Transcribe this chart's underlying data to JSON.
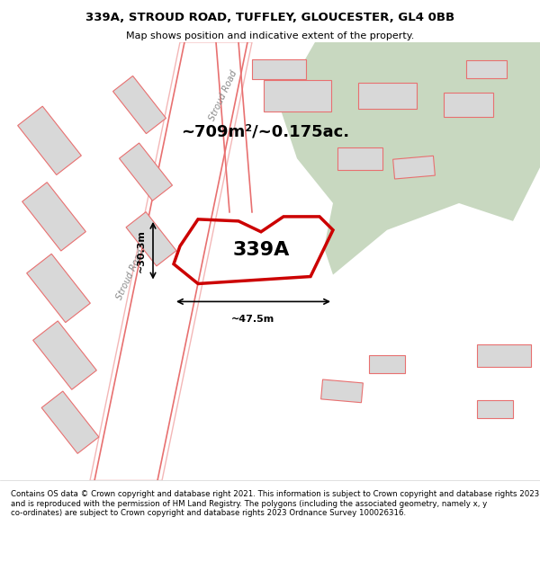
{
  "title_line1": "339A, STROUD ROAD, TUFFLEY, GLOUCESTER, GL4 0BB",
  "title_line2": "Map shows position and indicative extent of the property.",
  "area_label": "~709m²/~0.175ac.",
  "property_label": "339A",
  "dim_width": "~47.5m",
  "dim_height": "~30.3m",
  "road_label_1": "Stroud Road",
  "road_label_2": "Stroud Road",
  "footer_text": "Contains OS data © Crown copyright and database right 2021. This information is subject to Crown copyright and database rights 2023 and is reproduced with the permission of HM Land Registry. The polygons (including the associated geometry, namely x, y co-ordinates) are subject to Crown copyright and database rights 2023 Ordnance Survey 100026316.",
  "bg_color": "#f5f5f0",
  "map_bg": "#f0f0eb",
  "highlight_color": "#d4e8d4",
  "building_fill": "#d8d8d8",
  "road_line_color": "#e87070",
  "property_outline_color": "#cc0000",
  "dark_green_area": "#c8d8c0"
}
